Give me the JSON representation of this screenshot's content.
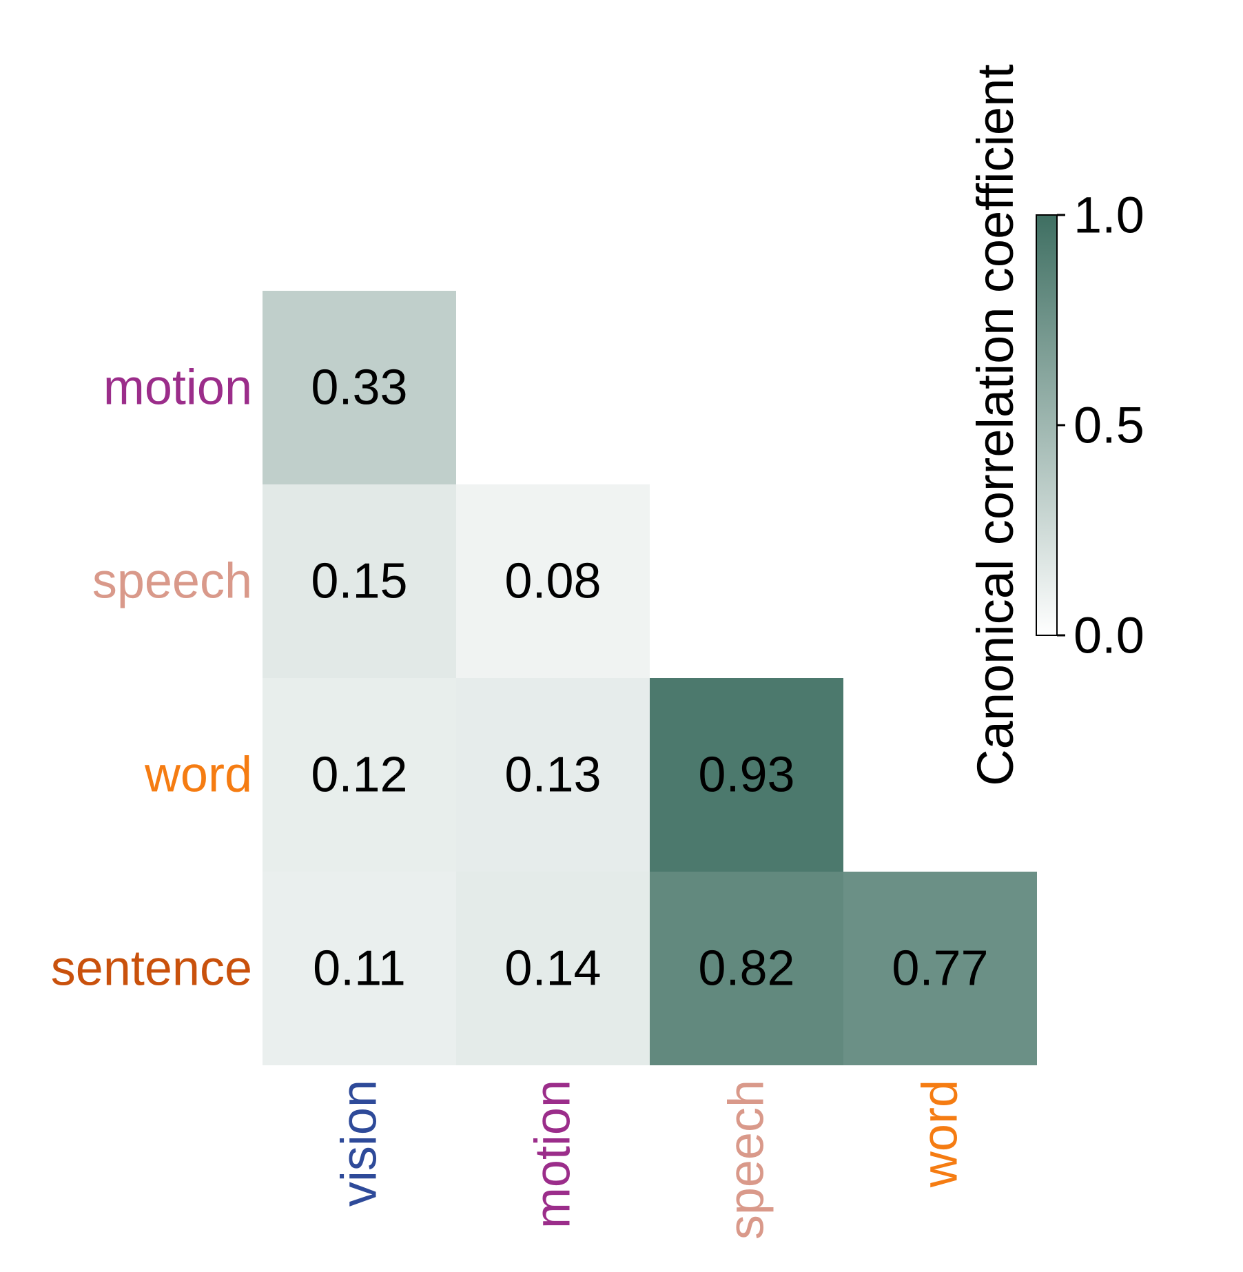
{
  "chart_data": {
    "type": "heatmap",
    "layout": "lower-triangle",
    "rows": [
      {
        "label": "motion",
        "color": "#9b2d8a"
      },
      {
        "label": "speech",
        "color": "#d9998a"
      },
      {
        "label": "word",
        "color": "#f57c12"
      },
      {
        "label": "sentence",
        "color": "#c9510c"
      }
    ],
    "columns": [
      {
        "label": "vision",
        "color": "#2e4a99"
      },
      {
        "label": "motion",
        "color": "#9b2d8a"
      },
      {
        "label": "speech",
        "color": "#d9998a"
      },
      {
        "label": "word",
        "color": "#f57c12"
      }
    ],
    "values": [
      [
        0.33,
        null,
        null,
        null
      ],
      [
        0.15,
        0.08,
        null,
        null
      ],
      [
        0.12,
        0.13,
        0.93,
        null
      ],
      [
        0.11,
        0.14,
        0.82,
        0.77
      ]
    ],
    "value_labels": [
      [
        "0.33",
        "",
        "",
        ""
      ],
      [
        "0.15",
        "0.08",
        "",
        ""
      ],
      [
        "0.12",
        "0.13",
        "0.93",
        ""
      ],
      [
        "0.11",
        "0.14",
        "0.82",
        "0.77"
      ]
    ],
    "colorbar": {
      "title": "Canonical correlation coefficient",
      "range": [
        0.0,
        1.0
      ],
      "ticks": [
        0.0,
        0.5,
        1.0
      ],
      "tick_labels": [
        "0.0",
        "0.5",
        "1.0"
      ],
      "color_low": "#ffffff",
      "color_high": "#3f6f62"
    }
  }
}
